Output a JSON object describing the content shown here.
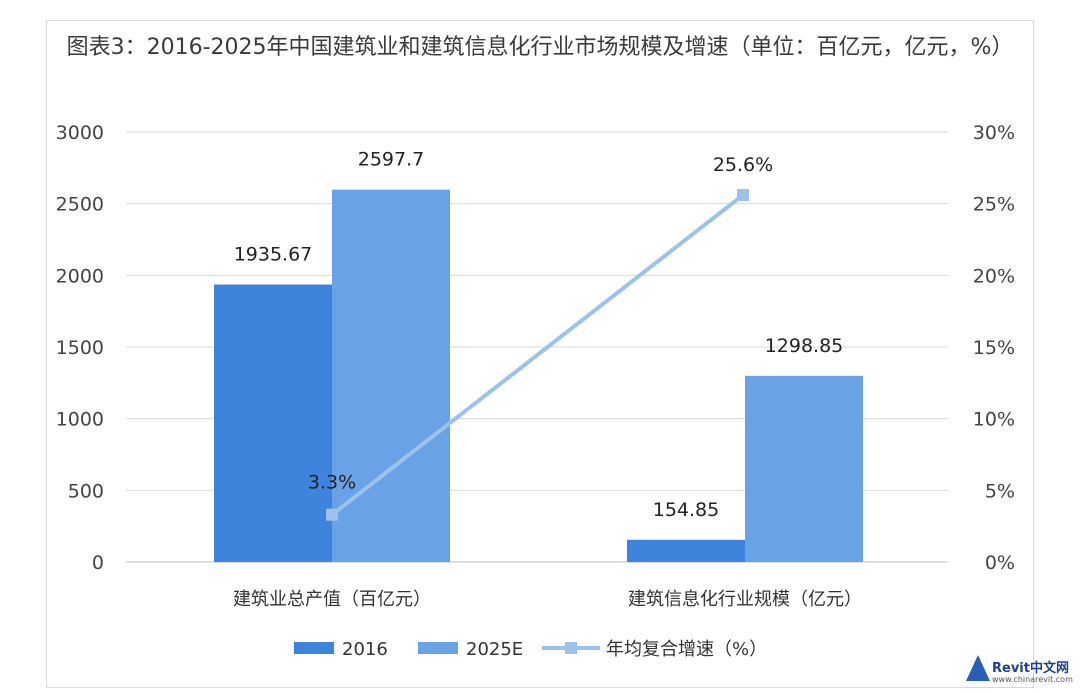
{
  "chart_data": {
    "type": "bar",
    "title": "图表3：2016-2025年中国建筑业和建筑信息化行业市场规模及增速（单位：百亿元，亿元，%）",
    "categories": [
      "建筑业总产值（百亿元）",
      "建筑信息化行业规模（亿元）"
    ],
    "series": [
      {
        "name": "2016",
        "values": [
          1935.67,
          154.85
        ],
        "labels": [
          "1935.67",
          "154.85"
        ],
        "color": "#3f84dc"
      },
      {
        "name": "2025E",
        "values": [
          2597.7,
          1298.85
        ],
        "labels": [
          "2597.7",
          "1298.85"
        ],
        "color": "#6aa2e6"
      }
    ],
    "line_series": {
      "name": "年均复合增速（%）",
      "values": [
        3.3,
        25.6
      ],
      "labels": [
        "3.3%",
        "25.6%"
      ],
      "axis": "right",
      "color": "#9cc2ec"
    },
    "ylim": [
      0,
      3000
    ],
    "yticks": [
      "0",
      "500",
      "1000",
      "1500",
      "2000",
      "2500",
      "3000"
    ],
    "y2lim": [
      0,
      30
    ],
    "y2ticks": [
      "0%",
      "5%",
      "10%",
      "15%",
      "20%",
      "25%",
      "30%"
    ],
    "grid": true,
    "legend_position": "bottom"
  },
  "watermark": {
    "brand": "Revit中文网",
    "url": "www.chinarevit.com"
  }
}
